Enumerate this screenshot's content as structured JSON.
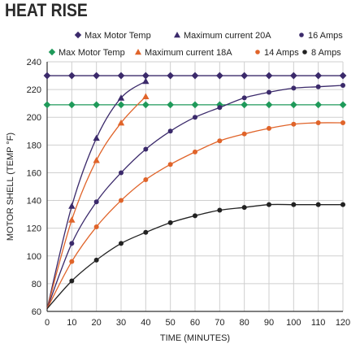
{
  "title": "HEAT RISE",
  "chart_data": {
    "type": "line",
    "xlabel": "TIME (MINUTES)",
    "ylabel": "MOTOR SHELL (TEMP °F)",
    "xlim": [
      0,
      120
    ],
    "ylim": [
      60,
      240
    ],
    "xticks": [
      0,
      10,
      20,
      30,
      40,
      50,
      60,
      70,
      80,
      90,
      100,
      110,
      120
    ],
    "yticks": [
      60,
      80,
      100,
      120,
      140,
      160,
      180,
      200,
      220,
      240
    ],
    "grid": true,
    "legend_rows": [
      [
        "Max Motor Temp",
        "Maximum current 20A",
        "16 Amps"
      ],
      [
        "Max Motor Temp",
        "Maximum current 18A",
        "14 Amps",
        "8 Amps"
      ]
    ],
    "series": [
      {
        "name": "Max Motor Temp",
        "color": "#3b2a6b",
        "marker": "diamond",
        "curve": false,
        "x": [
          0,
          10,
          20,
          30,
          40,
          50,
          60,
          70,
          80,
          90,
          100,
          110,
          120
        ],
        "y": [
          230,
          230,
          230,
          230,
          230,
          230,
          230,
          230,
          230,
          230,
          230,
          230,
          230
        ]
      },
      {
        "name": "Max Motor Temp",
        "color": "#1f9a5a",
        "marker": "diamond",
        "curve": false,
        "x": [
          0,
          10,
          20,
          30,
          40,
          50,
          60,
          70,
          80,
          90,
          100,
          110,
          120
        ],
        "y": [
          209,
          209,
          209,
          209,
          209,
          209,
          209,
          209,
          209,
          209,
          209,
          209,
          209
        ]
      },
      {
        "name": "Maximum current 20A",
        "color": "#3b2a6b",
        "marker": "triangle",
        "curve": true,
        "x": [
          0,
          10,
          20,
          30,
          40
        ],
        "y": [
          62,
          136,
          185,
          214,
          226
        ]
      },
      {
        "name": "Maximum current 18A",
        "color": "#e0642a",
        "marker": "triangle",
        "curve": true,
        "x": [
          0,
          10,
          20,
          30,
          40
        ],
        "y": [
          62,
          126,
          169,
          196,
          215
        ]
      },
      {
        "name": "16 Amps",
        "color": "#3b2a6b",
        "marker": "circle",
        "curve": true,
        "x": [
          0,
          10,
          20,
          30,
          40,
          50,
          60,
          70,
          80,
          90,
          100,
          110,
          120
        ],
        "y": [
          62,
          109,
          139,
          160,
          177,
          190,
          200,
          207,
          214,
          218,
          221,
          222,
          223
        ]
      },
      {
        "name": "14 Amps",
        "color": "#e0642a",
        "marker": "circle",
        "curve": true,
        "x": [
          0,
          10,
          20,
          30,
          40,
          50,
          60,
          70,
          80,
          90,
          100,
          110,
          120
        ],
        "y": [
          62,
          96,
          121,
          140,
          155,
          166,
          175,
          183,
          188,
          192,
          195,
          196,
          196
        ]
      },
      {
        "name": "8 Amps",
        "color": "#222222",
        "marker": "circle",
        "curve": true,
        "x": [
          0,
          10,
          20,
          30,
          40,
          50,
          60,
          70,
          80,
          90,
          100,
          110,
          120
        ],
        "y": [
          62,
          82,
          97,
          109,
          117,
          124,
          129,
          133,
          135,
          137,
          137,
          137,
          137
        ]
      }
    ]
  }
}
